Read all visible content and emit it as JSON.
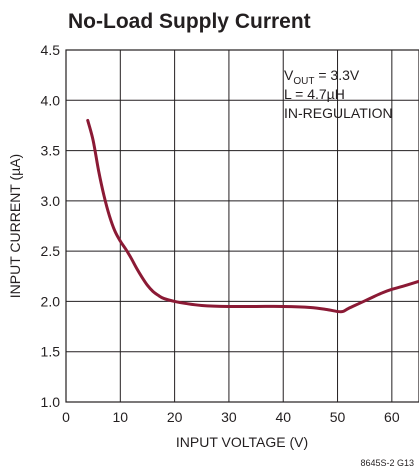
{
  "chart_data": {
    "type": "line",
    "title": "No-Load Supply Current",
    "xlabel": "INPUT VOLTAGE (V)",
    "ylabel": "INPUT CURRENT (µA)",
    "xlim": [
      0,
      65
    ],
    "ylim": [
      1.0,
      4.5
    ],
    "xticks": [
      "0",
      "10",
      "20",
      "30",
      "40",
      "50",
      "60"
    ],
    "yticks": [
      "1.0",
      "1.5",
      "2.0",
      "2.5",
      "3.0",
      "3.5",
      "4.0",
      "4.5"
    ],
    "grid": true,
    "series": [
      {
        "color": "#8b1a35",
        "x": [
          4,
          5,
          6,
          7,
          8,
          9,
          10,
          11,
          12,
          13,
          14,
          15,
          16,
          17,
          18,
          20,
          22,
          25,
          30,
          35,
          40,
          45,
          48,
          50,
          51,
          52,
          54,
          56,
          58,
          60,
          62,
          65
        ],
        "y": [
          3.8,
          3.6,
          3.3,
          3.05,
          2.85,
          2.7,
          2.6,
          2.52,
          2.43,
          2.33,
          2.24,
          2.16,
          2.1,
          2.06,
          2.03,
          2.0,
          1.98,
          1.96,
          1.95,
          1.95,
          1.95,
          1.94,
          1.92,
          1.9,
          1.9,
          1.93,
          1.98,
          2.03,
          2.08,
          2.12,
          2.15,
          2.2
        ]
      }
    ],
    "annotations": {
      "line1_main": "V",
      "line1_sub": "OUT",
      "line1_rest": " = 3.3V",
      "line2": "L = 4.7µH",
      "line3": "IN-REGULATION"
    },
    "figure_code": "8645S-2 G13"
  }
}
